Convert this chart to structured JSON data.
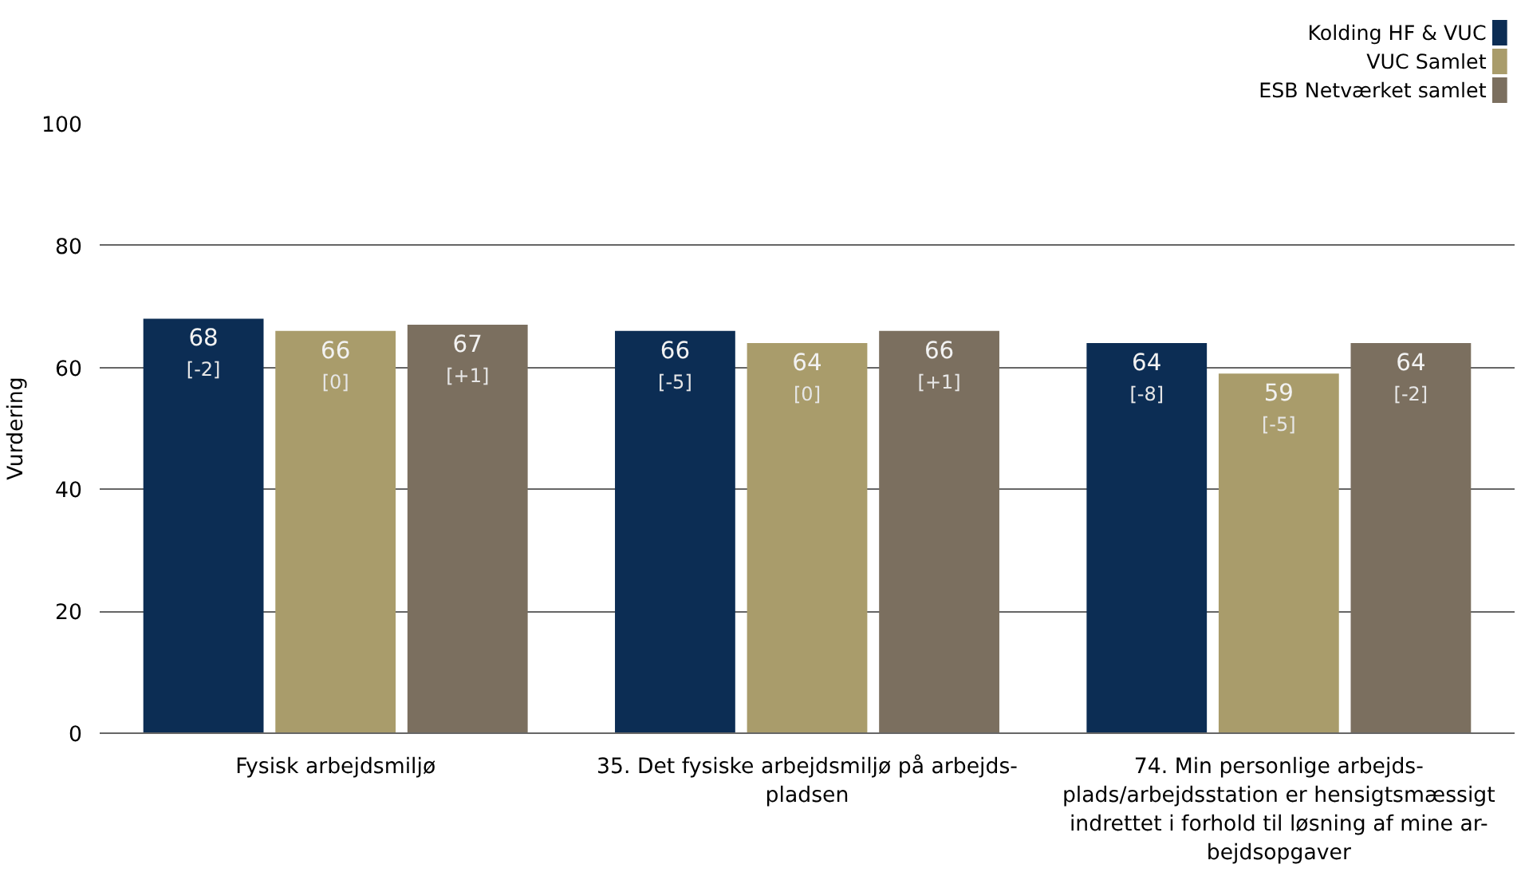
{
  "chart_data": {
    "type": "bar",
    "ylabel": "Vurdering",
    "categories": [
      "Fysisk arbejdsmiljø",
      "35. Det fysiske arbejdsmiljø på arbejds-\npladsen",
      "74. Min personlige arbejds-\nplads/arbejdsstation er hensigtsmæssigt\nindrettet i forhold til løsning af mine ar-\nbejdsopgaver"
    ],
    "series": [
      {
        "name": "Kolding HF & VUC",
        "color": "#0c2d54",
        "values": [
          68,
          66,
          64
        ],
        "value_labels": [
          "68\n[-2]",
          "66\n[-5]",
          "64\n[-8]"
        ]
      },
      {
        "name": "VUC Samlet",
        "color": "#a99c6b",
        "values": [
          66,
          64,
          59
        ],
        "value_labels": [
          "66\n[0]",
          "64\n[0]",
          "59\n[-5]"
        ]
      },
      {
        "name": "ESB Netværket samlet",
        "color": "#7b6f5f",
        "values": [
          67,
          66,
          64
        ],
        "value_labels": [
          "67\n[+1]",
          "66\n[+1]",
          "64\n[-2]"
        ]
      }
    ],
    "ylim": [
      0,
      100
    ],
    "yticks": [
      0,
      20,
      40,
      60,
      80,
      100
    ],
    "grid": "y",
    "legend": "top right"
  }
}
